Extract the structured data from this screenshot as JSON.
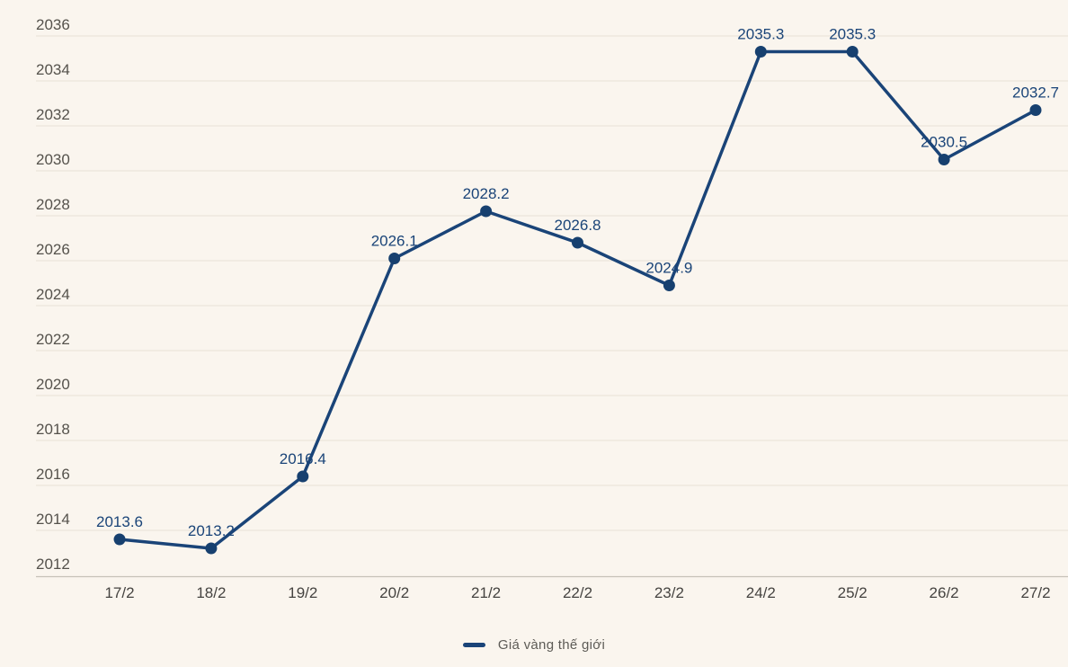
{
  "colors": {
    "background": "#faf5ee",
    "line": "#1a4478",
    "point": "#17406f",
    "grid": "#e8e1d5",
    "axis": "#c6c1b8",
    "y_tick_label": "#55524c",
    "x_tick_label": "#454340",
    "data_label": "#1a4478",
    "legend_text": "#5d5b56"
  },
  "legend": {
    "label": "Giá vàng thế giới"
  },
  "chart_data": {
    "type": "line",
    "title": "",
    "xlabel": "",
    "ylabel": "",
    "x": [
      "17/2",
      "18/2",
      "19/2",
      "20/2",
      "21/2",
      "22/2",
      "23/2",
      "24/2",
      "25/2",
      "26/2",
      "27/2"
    ],
    "series": [
      {
        "name": "Giá vàng thế giới",
        "values": [
          2013.6,
          2013.2,
          2016.4,
          2026.1,
          2028.2,
          2026.8,
          2024.9,
          2035.3,
          2035.3,
          2030.5,
          2032.7
        ]
      }
    ],
    "data_labels": [
      "2013.6",
      "2013.2",
      "2016.4",
      "2026.1",
      "2028.2",
      "2026.8",
      "2024.9",
      "2035.3",
      "2035.3",
      "2030.5",
      "2032.7"
    ],
    "y_ticks": [
      2012,
      2014,
      2016,
      2018,
      2020,
      2022,
      2024,
      2026,
      2028,
      2030,
      2032,
      2034,
      2036
    ],
    "ylim": [
      2012,
      2036
    ],
    "ytick_step": 2,
    "grid": true,
    "legend_position": "bottom"
  }
}
